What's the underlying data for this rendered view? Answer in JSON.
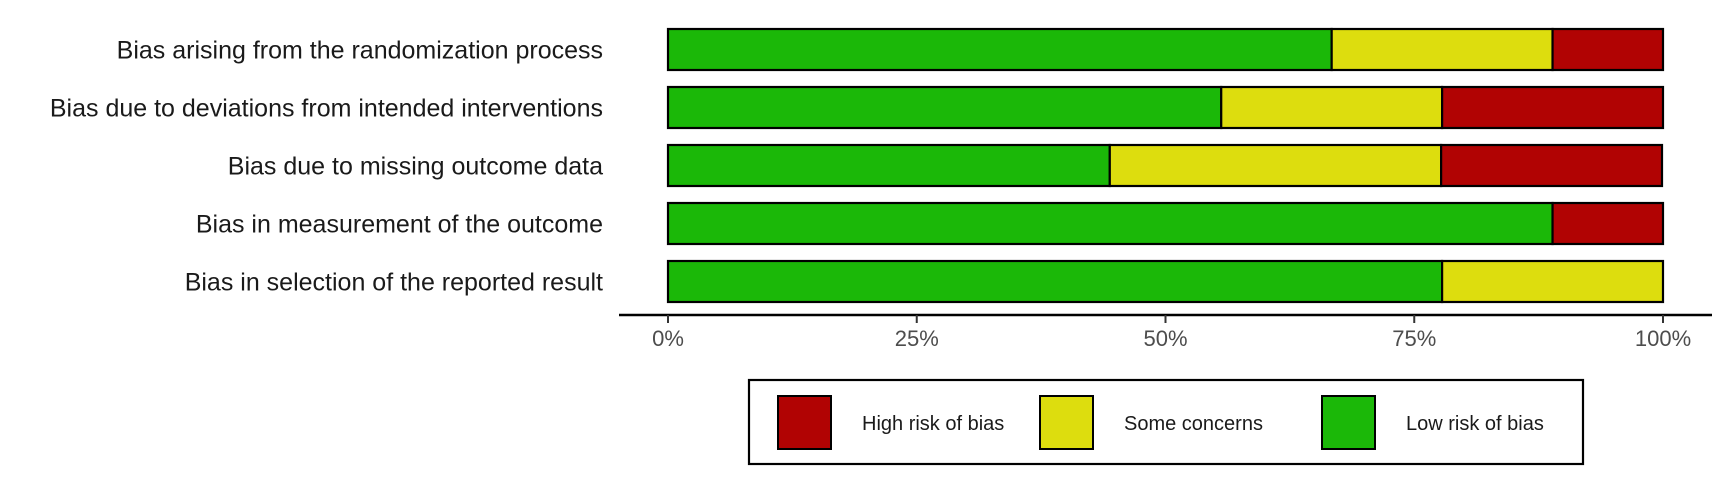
{
  "chart_data": {
    "type": "bar",
    "orientation": "horizontal",
    "stacked": true,
    "categories": [
      "Bias arising from the randomization process",
      "Bias due to deviations from intended interventions",
      "Bias due to missing outcome data",
      "Bias in measurement of the outcome",
      "Bias in selection of the reported result"
    ],
    "series": [
      {
        "name": "Low risk of bias",
        "color": "#1bb808",
        "values": [
          66.7,
          55.6,
          44.4,
          88.9,
          77.8
        ]
      },
      {
        "name": "Some concerns",
        "color": "#dddd0e",
        "values": [
          22.2,
          22.2,
          33.3,
          0,
          22.2
        ]
      },
      {
        "name": "High risk of bias",
        "color": "#b10303",
        "values": [
          11.1,
          22.2,
          22.2,
          11.1,
          0
        ]
      }
    ],
    "xlim": [
      0,
      100
    ],
    "x_ticks": [
      "0%",
      "25%",
      "50%",
      "75%",
      "100%"
    ],
    "x_tick_values": [
      0,
      25,
      50,
      75,
      100
    ],
    "legend": {
      "position": "bottom",
      "order": [
        "High risk of bias",
        "Some concerns",
        "Low risk of bias"
      ]
    },
    "grid": false
  }
}
